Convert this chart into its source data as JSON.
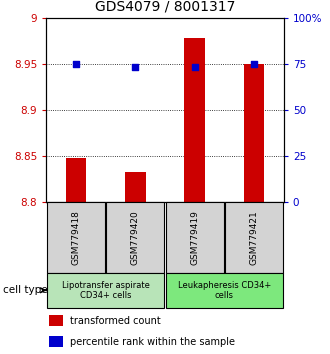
{
  "title": "GDS4079 / 8001317",
  "samples": [
    "GSM779418",
    "GSM779420",
    "GSM779419",
    "GSM779421"
  ],
  "transformed_counts": [
    8.848,
    8.832,
    8.978,
    8.95
  ],
  "percentile_ranks": [
    75,
    73,
    73,
    75
  ],
  "ylim_left": [
    8.8,
    9.0
  ],
  "ylim_right": [
    0,
    100
  ],
  "yticks_left": [
    8.8,
    8.85,
    8.9,
    8.95,
    9.0
  ],
  "yticks_right": [
    0,
    25,
    50,
    75,
    100
  ],
  "ytick_labels_left": [
    "8.8",
    "8.85",
    "8.9",
    "8.95",
    "9"
  ],
  "ytick_labels_right": [
    "0",
    "25",
    "50",
    "75",
    "100%"
  ],
  "groups": [
    {
      "label": "Lipotransfer aspirate\nCD34+ cells",
      "samples": [
        0,
        1
      ],
      "color": "#b8e4b8"
    },
    {
      "label": "Leukapheresis CD34+\ncells",
      "samples": [
        2,
        3
      ],
      "color": "#7de87d"
    }
  ],
  "bar_color": "#cc0000",
  "dot_color": "#0000cc",
  "bar_width": 0.35,
  "grid_color": "#000000",
  "sample_box_color": "#d3d3d3",
  "cell_type_label": "cell type",
  "legend_bar_label": "transformed count",
  "legend_dot_label": "percentile rank within the sample",
  "title_fontsize": 10,
  "tick_fontsize": 7.5,
  "label_fontsize": 7.5
}
